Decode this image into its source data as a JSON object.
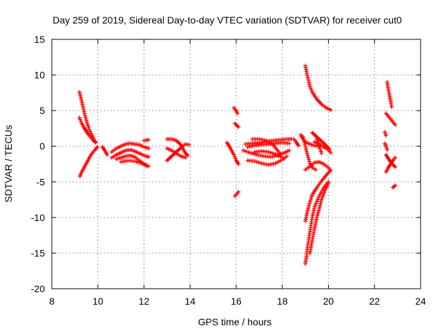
{
  "chart_data": {
    "type": "scatter",
    "title": "Day 259 of 2019, Sidereal Day-to-day VTEC variation (SDTVAR) for receiver cut0",
    "xlabel": "GPS time / hours",
    "ylabel": "SDTVAR / TECUs",
    "xlim": [
      8,
      24
    ],
    "ylim": [
      -20,
      15
    ],
    "xticks": [
      "8",
      "10",
      "12",
      "14",
      "16",
      "18",
      "20",
      "22",
      "24"
    ],
    "yticks": [
      "15",
      "10",
      "5",
      "0",
      "-5",
      "-10",
      "-15",
      "-20"
    ],
    "grid": true,
    "marker": "plus",
    "color": "#ff0000",
    "series": [
      {
        "points": [
          [
            9.2,
            7.6
          ],
          [
            9.28,
            6.6
          ],
          [
            9.35,
            5.6
          ],
          [
            9.42,
            4.6
          ],
          [
            9.5,
            3.6
          ],
          [
            9.6,
            2.6
          ],
          [
            9.7,
            1.8
          ],
          [
            9.82,
            1.0
          ],
          [
            9.9,
            0.5
          ]
        ]
      },
      {
        "points": [
          [
            9.2,
            4.0
          ],
          [
            9.3,
            3.2
          ],
          [
            9.4,
            2.6
          ],
          [
            9.5,
            2.1
          ],
          [
            9.6,
            1.6
          ],
          [
            9.7,
            1.2
          ],
          [
            9.8,
            0.8
          ],
          [
            9.9,
            0.6
          ]
        ]
      },
      {
        "points": [
          [
            9.22,
            -4.2
          ],
          [
            9.3,
            -3.6
          ],
          [
            9.4,
            -3.0
          ],
          [
            9.5,
            -2.4
          ],
          [
            9.6,
            -1.8
          ],
          [
            9.7,
            -1.2
          ],
          [
            9.8,
            -0.8
          ],
          [
            9.9,
            -0.4
          ],
          [
            9.98,
            -0.1
          ]
        ]
      },
      {
        "points": [
          [
            10.2,
            -0.1
          ],
          [
            10.3,
            -0.6
          ],
          [
            10.4,
            -1.2
          ]
        ]
      },
      {
        "points": [
          [
            10.6,
            -0.8
          ],
          [
            10.8,
            -0.3
          ],
          [
            11.0,
            0.0
          ],
          [
            11.2,
            0.3
          ],
          [
            11.4,
            0.4
          ],
          [
            11.6,
            0.3
          ],
          [
            11.8,
            0.2
          ],
          [
            12.0,
            -0.1
          ],
          [
            12.2,
            -0.3
          ]
        ]
      },
      {
        "points": [
          [
            10.6,
            -1.6
          ],
          [
            10.8,
            -1.2
          ],
          [
            11.0,
            -0.9
          ],
          [
            11.2,
            -0.6
          ],
          [
            11.4,
            -0.5
          ],
          [
            11.6,
            -0.7
          ],
          [
            11.8,
            -1.0
          ],
          [
            12.0,
            -1.3
          ],
          [
            12.2,
            -1.5
          ]
        ]
      },
      {
        "points": [
          [
            10.8,
            -1.8
          ],
          [
            11.0,
            -1.6
          ],
          [
            11.2,
            -1.4
          ],
          [
            11.4,
            -1.3
          ],
          [
            11.6,
            -1.5
          ],
          [
            11.8,
            -2.0
          ],
          [
            12.0,
            -2.5
          ],
          [
            12.2,
            -2.8
          ]
        ]
      },
      {
        "points": [
          [
            11.0,
            -2.2
          ],
          [
            11.3,
            -2.0
          ],
          [
            11.6,
            -2.1
          ],
          [
            11.9,
            -2.4
          ],
          [
            12.1,
            -2.7
          ]
        ]
      },
      {
        "points": [
          [
            12.0,
            0.8
          ],
          [
            12.2,
            0.9
          ]
        ]
      },
      {
        "points": [
          [
            13.0,
            1.0
          ],
          [
            13.2,
            1.0
          ],
          [
            13.4,
            0.8
          ],
          [
            13.6,
            0.2
          ],
          [
            13.7,
            -0.4
          ],
          [
            13.8,
            -1.0
          ],
          [
            13.9,
            -1.3
          ]
        ]
      },
      {
        "points": [
          [
            13.0,
            -2.0
          ],
          [
            13.2,
            -1.4
          ],
          [
            13.4,
            -0.8
          ],
          [
            13.6,
            -0.2
          ],
          [
            13.8,
            0.3
          ],
          [
            13.95,
            0.2
          ]
        ]
      },
      {
        "points": [
          [
            13.0,
            -0.3
          ],
          [
            13.2,
            -0.6
          ],
          [
            13.4,
            -1.0
          ],
          [
            13.6,
            -1.4
          ],
          [
            13.8,
            -1.6
          ]
        ]
      },
      {
        "points": [
          [
            15.6,
            0.5
          ],
          [
            15.7,
            0.0
          ],
          [
            15.8,
            -0.6
          ],
          [
            15.9,
            -1.2
          ],
          [
            16.0,
            -2.0
          ],
          [
            16.1,
            -2.5
          ]
        ]
      },
      {
        "points": [
          [
            15.9,
            5.4
          ],
          [
            16.0,
            5.0
          ],
          [
            16.05,
            4.6
          ]
        ]
      },
      {
        "points": [
          [
            15.95,
            3.2
          ],
          [
            16.0,
            3.0
          ],
          [
            16.1,
            2.7
          ]
        ]
      },
      {
        "points": [
          [
            15.95,
            -7.0
          ],
          [
            16.0,
            -6.8
          ],
          [
            16.1,
            -6.4
          ]
        ]
      },
      {
        "points": [
          [
            16.3,
            -0.6
          ],
          [
            16.6,
            -0.9
          ],
          [
            16.9,
            -1.2
          ],
          [
            17.2,
            -1.4
          ],
          [
            17.5,
            -1.5
          ],
          [
            17.8,
            -1.3
          ],
          [
            18.1,
            -0.9
          ],
          [
            18.3,
            -0.6
          ]
        ]
      },
      {
        "points": [
          [
            16.4,
            0.3
          ],
          [
            16.7,
            0.4
          ],
          [
            17.0,
            0.5
          ],
          [
            17.3,
            0.7
          ],
          [
            17.6,
            0.8
          ],
          [
            17.9,
            0.9
          ],
          [
            18.2,
            1.0
          ],
          [
            18.4,
            1.0
          ]
        ]
      },
      {
        "points": [
          [
            16.5,
            -0.1
          ],
          [
            16.8,
            0.1
          ],
          [
            17.1,
            0.2
          ],
          [
            17.4,
            0.3
          ],
          [
            17.7,
            0.4
          ],
          [
            18.0,
            0.5
          ],
          [
            18.3,
            0.4
          ]
        ]
      },
      {
        "points": [
          [
            16.5,
            -2.0
          ],
          [
            16.8,
            -2.1
          ],
          [
            17.1,
            -2.4
          ],
          [
            17.4,
            -2.6
          ],
          [
            17.7,
            -2.4
          ],
          [
            18.0,
            -1.9
          ],
          [
            18.2,
            -1.4
          ]
        ]
      },
      {
        "points": [
          [
            16.7,
            1.0
          ],
          [
            17.0,
            1.0
          ],
          [
            17.3,
            0.8
          ],
          [
            17.6,
            0.2
          ],
          [
            17.8,
            -0.6
          ],
          [
            17.9,
            -1.0
          ]
        ]
      },
      {
        "points": [
          [
            16.8,
            -0.8
          ],
          [
            17.1,
            -0.7
          ],
          [
            17.4,
            -0.8
          ],
          [
            17.7,
            -1.1
          ],
          [
            18.0,
            -1.6
          ]
        ]
      },
      {
        "points": [
          [
            18.5,
            1.0
          ],
          [
            18.6,
            0.6
          ],
          [
            18.7,
            0.1
          ]
        ]
      },
      {
        "points": [
          [
            18.8,
            1.6
          ],
          [
            18.9,
            1.0
          ],
          [
            19.0,
            0.6
          ],
          [
            19.2,
            0.3
          ],
          [
            19.4,
            0.1
          ],
          [
            19.6,
            0.0
          ]
        ]
      },
      {
        "points": [
          [
            19.0,
            11.3
          ],
          [
            19.05,
            10.5
          ],
          [
            19.1,
            9.7
          ],
          [
            19.2,
            8.4
          ],
          [
            19.3,
            7.6
          ],
          [
            19.5,
            6.6
          ],
          [
            19.7,
            5.9
          ],
          [
            19.9,
            5.4
          ],
          [
            20.1,
            5.1
          ]
        ]
      },
      {
        "points": [
          [
            19.3,
            1.9
          ],
          [
            19.5,
            1.3
          ],
          [
            19.7,
            0.7
          ],
          [
            19.9,
            0.1
          ],
          [
            20.05,
            -0.4
          ]
        ]
      },
      {
        "points": [
          [
            19.4,
            0.6
          ],
          [
            19.6,
            0.3
          ],
          [
            19.8,
            -0.1
          ],
          [
            20.0,
            -0.5
          ],
          [
            20.1,
            -0.9
          ]
        ]
      },
      {
        "points": [
          [
            19.5,
            1.0
          ],
          [
            19.55,
            0.5
          ],
          [
            19.6,
            0.0
          ],
          [
            19.65,
            -0.5
          ],
          [
            19.7,
            -1.0
          ]
        ]
      },
      {
        "points": [
          [
            18.9,
            1.3
          ],
          [
            19.0,
            0.0
          ],
          [
            19.1,
            -1.3
          ],
          [
            19.2,
            -2.4
          ],
          [
            19.3,
            -3.0
          ],
          [
            19.45,
            -3.3
          ]
        ]
      },
      {
        "points": [
          [
            19.0,
            -3.3
          ],
          [
            19.2,
            -2.8
          ],
          [
            19.4,
            -2.3
          ],
          [
            19.6,
            -2.2
          ],
          [
            19.8,
            -2.5
          ],
          [
            20.0,
            -3.0
          ],
          [
            20.1,
            -3.4
          ]
        ]
      },
      {
        "points": [
          [
            19.0,
            -16.5
          ],
          [
            19.05,
            -15.5
          ],
          [
            19.1,
            -14.0
          ],
          [
            19.2,
            -12.0
          ],
          [
            19.3,
            -10.0
          ],
          [
            19.4,
            -8.5
          ],
          [
            19.6,
            -7.0
          ],
          [
            19.8,
            -5.8
          ],
          [
            20.0,
            -5.0
          ]
        ]
      },
      {
        "points": [
          [
            19.0,
            -10.5
          ],
          [
            19.1,
            -9.0
          ],
          [
            19.2,
            -7.8
          ],
          [
            19.3,
            -6.8
          ],
          [
            19.5,
            -5.8
          ],
          [
            19.7,
            -4.9
          ],
          [
            19.9,
            -4.1
          ],
          [
            20.05,
            -3.5
          ]
        ]
      },
      {
        "points": [
          [
            19.2,
            -15.0
          ],
          [
            19.3,
            -13.2
          ],
          [
            19.4,
            -11.5
          ],
          [
            19.5,
            -10.0
          ],
          [
            19.6,
            -8.8
          ],
          [
            19.7,
            -7.5
          ],
          [
            19.85,
            -6.2
          ],
          [
            20.0,
            -5.2
          ]
        ]
      },
      {
        "points": [
          [
            22.55,
            9.0
          ],
          [
            22.6,
            8.0
          ],
          [
            22.65,
            7.2
          ],
          [
            22.7,
            6.3
          ],
          [
            22.75,
            5.5
          ]
        ]
      },
      {
        "points": [
          [
            22.5,
            4.6
          ],
          [
            22.6,
            4.2
          ],
          [
            22.7,
            3.8
          ],
          [
            22.8,
            3.4
          ],
          [
            22.9,
            3.0
          ]
        ]
      },
      {
        "points": [
          [
            22.45,
            2.0
          ],
          [
            22.5,
            1.5
          ]
        ]
      },
      {
        "points": [
          [
            22.45,
            0.4
          ],
          [
            22.5,
            0.0
          ],
          [
            22.55,
            -0.5
          ]
        ]
      },
      {
        "points": [
          [
            22.5,
            -1.2
          ],
          [
            22.6,
            -1.7
          ],
          [
            22.7,
            -2.2
          ],
          [
            22.8,
            -2.6
          ],
          [
            22.9,
            -2.9
          ]
        ]
      },
      {
        "points": [
          [
            22.5,
            -3.6
          ],
          [
            22.6,
            -3.0
          ],
          [
            22.7,
            -2.5
          ],
          [
            22.8,
            -2.0
          ],
          [
            22.9,
            -1.6
          ]
        ]
      },
      {
        "points": [
          [
            22.8,
            -5.8
          ],
          [
            22.9,
            -5.5
          ]
        ]
      }
    ]
  }
}
